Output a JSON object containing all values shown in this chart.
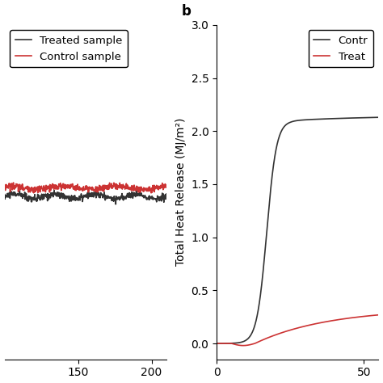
{
  "panel_a": {
    "treated_color": "#333333",
    "control_color": "#cc3333",
    "x_start": 100,
    "x_end": 210,
    "xlim": [
      100,
      210
    ],
    "ylim": [
      -0.5,
      1.8
    ],
    "xticks": [
      150,
      200
    ],
    "legend_labels": [
      "Treated sample",
      "Control sample"
    ],
    "treated_mean": 0.62,
    "control_mean": 0.68,
    "noise_amplitude": 0.012
  },
  "panel_b": {
    "control_color": "#333333",
    "treated_color": "#cc3333",
    "xlim": [
      0,
      55
    ],
    "ylim": [
      -0.15,
      3.0
    ],
    "yticks": [
      0.0,
      0.5,
      1.0,
      1.5,
      2.0,
      2.5,
      3.0
    ],
    "xticks": [
      0,
      50
    ],
    "ylabel": "Total Heat Release (MJ/m²)",
    "control_legend": "Contr",
    "treated_legend": "Treat"
  },
  "background_color": "#ffffff",
  "tick_fontsize": 10,
  "label_fontsize": 10,
  "legend_fontsize": 9.5,
  "line_width": 1.2,
  "b_label_fontsize": 12
}
